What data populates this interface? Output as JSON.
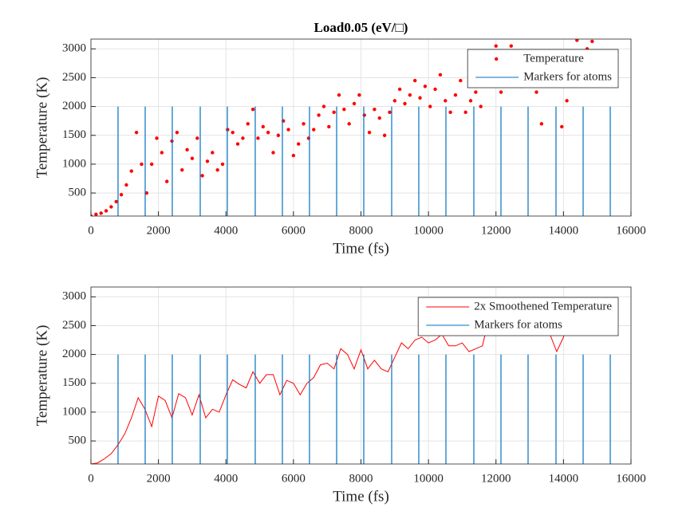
{
  "chart_data": [
    {
      "type": "scatter",
      "title": "Load0.05 (eV/□)",
      "xlabel": "Time (fs)",
      "ylabel": "Temperature (K)",
      "xlim": [
        0,
        16000
      ],
      "xticks": [
        0,
        2000,
        4000,
        6000,
        8000,
        10000,
        12000,
        14000,
        16000
      ],
      "ylim": [
        100,
        3170
      ],
      "yticks": [
        500,
        1000,
        1500,
        2000,
        2500,
        3000
      ],
      "grid": true,
      "legend": "upper right",
      "series": [
        {
          "name": "Temperature",
          "type": "scatter",
          "color": "#ff0000",
          "x": [
            0,
            150,
            300,
            450,
            600,
            750,
            900,
            1050,
            1200,
            1350,
            1500,
            1650,
            1800,
            1950,
            2100,
            2250,
            2400,
            2550,
            2700,
            2850,
            3000,
            3150,
            3300,
            3450,
            3600,
            3750,
            3900,
            4050,
            4200,
            4350,
            4500,
            4650,
            4800,
            4950,
            5100,
            5250,
            5400,
            5550,
            5700,
            5850,
            6000,
            6150,
            6300,
            6450,
            6600,
            6750,
            6900,
            7050,
            7200,
            7350,
            7500,
            7650,
            7800,
            7950,
            8100,
            8250,
            8400,
            8550,
            8700,
            8850,
            9000,
            9150,
            9300,
            9450,
            9600,
            9750,
            9900,
            10050,
            10200,
            10350,
            10500,
            10650,
            10800,
            10950,
            11100,
            11250,
            11400,
            11550,
            11700,
            11850,
            12000,
            12150,
            12300,
            12450,
            12600,
            12750,
            12900,
            13050,
            13200,
            13350,
            13500,
            13650,
            13800,
            13950,
            14100,
            14250,
            14400,
            14550,
            14700,
            14850
          ],
          "values": [
            100,
            130,
            150,
            190,
            260,
            350,
            470,
            640,
            880,
            1550,
            1000,
            500,
            1000,
            1450,
            1200,
            700,
            1400,
            1550,
            900,
            1250,
            1100,
            1450,
            800,
            1050,
            1200,
            900,
            1000,
            1600,
            1550,
            1350,
            1450,
            1700,
            1950,
            1450,
            1650,
            1550,
            1200,
            1500,
            1750,
            1600,
            1150,
            1350,
            1700,
            1450,
            1600,
            1850,
            2000,
            1650,
            1900,
            2200,
            1950,
            1700,
            2050,
            2200,
            1850,
            1550,
            1950,
            1800,
            1500,
            1900,
            2100,
            2300,
            2050,
            2200,
            2450,
            2150,
            2350,
            2000,
            2300,
            2550,
            2100,
            1900,
            2200,
            2450,
            1900,
            2100,
            2250,
            2000,
            2550,
            2700,
            3050,
            2250,
            2800,
            3050,
            2650,
            2350,
            2500,
            2700,
            2250,
            1700,
            2600,
            2450,
            2800,
            1650,
            2100,
            2900,
            3150,
            2950,
            3000,
            3130
          ]
        },
        {
          "name": "Markers for atoms",
          "type": "vline",
          "color": "#0072bd",
          "x": [
            803,
            1607,
            2410,
            3238,
            4041,
            4868,
            5672,
            6475,
            7279,
            8083,
            8910,
            9713,
            10517,
            11344,
            12148,
            12951,
            13778,
            14582,
            15386
          ],
          "values": [
            2000,
            2000,
            2000,
            2000,
            2000,
            2000,
            2000,
            2000,
            2000,
            2000,
            2000,
            2000,
            2000,
            2000,
            2000,
            2000,
            2000,
            2000,
            2000
          ]
        }
      ]
    },
    {
      "type": "line",
      "xlabel": "Time (fs)",
      "ylabel": "Temperature (K)",
      "xlim": [
        0,
        16000
      ],
      "xticks": [
        0,
        2000,
        4000,
        6000,
        8000,
        10000,
        12000,
        14000,
        16000
      ],
      "ylim": [
        100,
        3170
      ],
      "yticks": [
        500,
        1000,
        1500,
        2000,
        2500,
        3000
      ],
      "grid": true,
      "legend": "upper right",
      "series": [
        {
          "name": "2x Smoothened Temperature",
          "type": "line",
          "color": "#ff0000",
          "x": [
            0,
            200,
            400,
            600,
            800,
            1000,
            1200,
            1400,
            1600,
            1800,
            2000,
            2200,
            2400,
            2600,
            2800,
            3000,
            3200,
            3400,
            3600,
            3800,
            4000,
            4200,
            4400,
            4600,
            4800,
            5000,
            5200,
            5400,
            5600,
            5800,
            6000,
            6200,
            6400,
            6600,
            6800,
            7000,
            7200,
            7400,
            7600,
            7800,
            8000,
            8200,
            8400,
            8600,
            8800,
            9000,
            9200,
            9400,
            9600,
            9800,
            10000,
            10200,
            10400,
            10600,
            10800,
            11000,
            11200,
            11400,
            11600,
            11800,
            12000,
            12200,
            12400,
            12600,
            12800,
            13000,
            13200,
            13400,
            13600,
            13800,
            14000,
            14200
          ],
          "values": [
            100,
            120,
            190,
            280,
            430,
            620,
            900,
            1250,
            1050,
            750,
            1280,
            1200,
            900,
            1320,
            1250,
            950,
            1300,
            900,
            1050,
            1000,
            1300,
            1560,
            1480,
            1420,
            1700,
            1500,
            1650,
            1650,
            1300,
            1550,
            1500,
            1300,
            1500,
            1600,
            1820,
            1850,
            1750,
            2100,
            2000,
            1750,
            2080,
            1750,
            1900,
            1750,
            1700,
            1950,
            2200,
            2100,
            2250,
            2300,
            2200,
            2250,
            2350,
            2150,
            2150,
            2200,
            2050,
            2100,
            2150,
            2650,
            2850,
            2650,
            2500,
            2450,
            2500,
            2600,
            2400,
            2600,
            2350,
            2050,
            2300,
            2950
          ]
        },
        {
          "name": "Markers for atoms",
          "type": "vline",
          "color": "#0072bd",
          "x": [
            803,
            1607,
            2410,
            3238,
            4041,
            4868,
            5672,
            6475,
            7279,
            8083,
            8910,
            9713,
            10517,
            11344,
            12148,
            12951,
            13778,
            14582,
            15386
          ],
          "values": [
            2000,
            2000,
            2000,
            2000,
            2000,
            2000,
            2000,
            2000,
            2000,
            2000,
            2000,
            2000,
            2000,
            2000,
            2000,
            2000,
            2000,
            2000,
            2000
          ]
        }
      ]
    }
  ]
}
